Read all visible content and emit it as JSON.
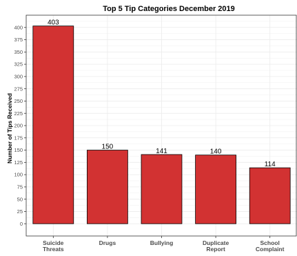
{
  "chart_data": {
    "type": "bar",
    "title": "Top 5 Tip Categories December 2019",
    "xlabel": "",
    "ylabel": "Number of Tips Received",
    "categories": [
      [
        "Suicide",
        "Threats"
      ],
      [
        "Drugs"
      ],
      [
        "Bullying"
      ],
      [
        "Duplicate",
        "Report"
      ],
      [
        "School",
        "Complaint"
      ]
    ],
    "values": [
      403,
      150,
      141,
      140,
      114
    ],
    "ylim": [
      -25,
      425
    ],
    "yticks": [
      0,
      25,
      50,
      75,
      100,
      125,
      150,
      175,
      200,
      225,
      250,
      275,
      300,
      325,
      350,
      375,
      400
    ],
    "grid": true,
    "legend": "none",
    "bar_color": "#d23232",
    "bar_outline": "#000000",
    "grid_color": "#ebebeb"
  }
}
